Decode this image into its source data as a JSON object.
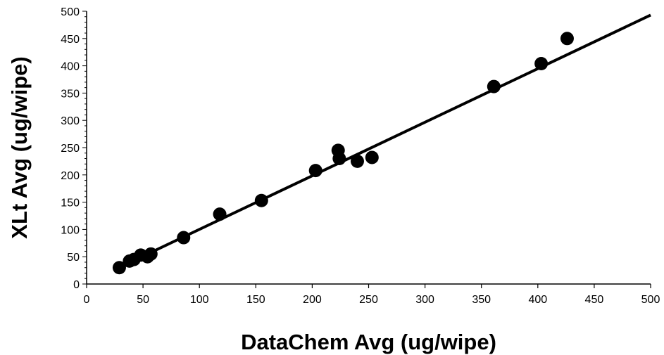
{
  "chart_data": {
    "type": "scatter",
    "xlabel": "DataChem Avg (ug/wipe)",
    "ylabel": "XLt Avg (ug/wipe)",
    "xlim": [
      0,
      500
    ],
    "ylim": [
      0,
      500
    ],
    "x_ticks": [
      "0",
      "50",
      "100",
      "150",
      "200",
      "250",
      "300",
      "350",
      "400",
      "450",
      "500"
    ],
    "y_ticks": [
      "0",
      "50",
      "100",
      "150",
      "200",
      "250",
      "300",
      "350",
      "400",
      "450",
      "500"
    ],
    "grid": false,
    "legend": "none",
    "marker_color": "#000000",
    "points": [
      {
        "x": 29,
        "y": 30
      },
      {
        "x": 38,
        "y": 42
      },
      {
        "x": 42,
        "y": 45
      },
      {
        "x": 48,
        "y": 53
      },
      {
        "x": 54,
        "y": 50
      },
      {
        "x": 57,
        "y": 55
      },
      {
        "x": 86,
        "y": 85
      },
      {
        "x": 118,
        "y": 128
      },
      {
        "x": 155,
        "y": 153
      },
      {
        "x": 203,
        "y": 208
      },
      {
        "x": 223,
        "y": 245
      },
      {
        "x": 224,
        "y": 230
      },
      {
        "x": 240,
        "y": 225
      },
      {
        "x": 253,
        "y": 232
      },
      {
        "x": 361,
        "y": 362
      },
      {
        "x": 403,
        "y": 404
      },
      {
        "x": 426,
        "y": 450
      }
    ],
    "fit_line": {
      "x": [
        51,
        500
      ],
      "y": [
        52,
        493
      ]
    }
  }
}
